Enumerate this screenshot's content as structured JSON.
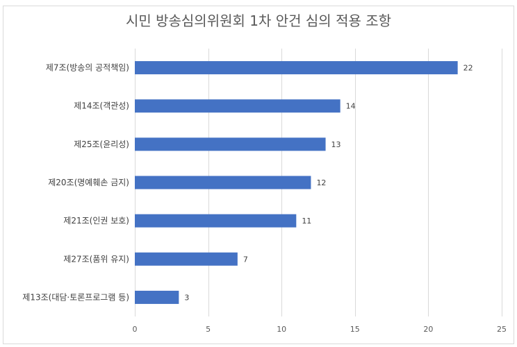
{
  "chart_data": {
    "type": "bar",
    "orientation": "horizontal",
    "title": "시민 방송심의위원회 1차 안건 심의 적용 조항",
    "xlabel": "",
    "ylabel": "",
    "categories": [
      "제7조(방송의 공적책임)",
      "제14조(객관성)",
      "제25조(윤리성)",
      "제20조(명예훼손 금지)",
      "제21조(인권 보호)",
      "제27조(품위 유지)",
      "제13조(대담·토론프로그램 등)"
    ],
    "values": [
      22,
      14,
      13,
      12,
      11,
      7,
      3
    ],
    "xlim": [
      0,
      25
    ],
    "xticks": [
      0,
      5,
      10,
      15,
      20,
      25
    ],
    "grid": "vertical",
    "legend": "none",
    "data_labels": true,
    "bar_color": "#4472c4",
    "grid_color": "#d9d9d9"
  }
}
